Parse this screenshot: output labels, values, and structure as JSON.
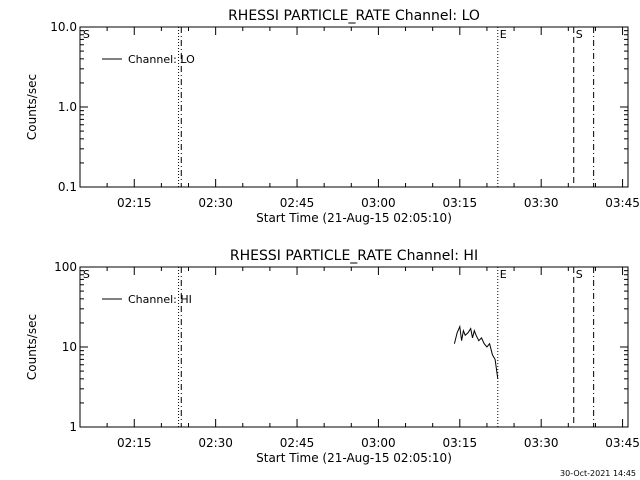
{
  "footer": {
    "timestamp": "30-Oct-2021 14:45"
  },
  "chart_data": [
    {
      "type": "line",
      "title": "RHESSI PARTICLE_RATE Channel: LO",
      "xlabel": "Start Time (21-Aug-15 02:05:10)",
      "ylabel": "Counts/sec",
      "yscale": "log",
      "xlim": [
        "02:05",
        "03:46"
      ],
      "ylim": [
        0.1,
        10.0
      ],
      "ytick_labels": [
        "0.1",
        "1.0",
        "10.0"
      ],
      "xtick_labels": [
        "02:15",
        "02:30",
        "02:45",
        "03:00",
        "03:15",
        "03:30",
        "03:45"
      ],
      "xminor_step_minutes": 5,
      "legend": {
        "label": "Channel: LO",
        "position": "top-left"
      },
      "vlines": [
        {
          "time": "02:23:10",
          "style": "dotted"
        },
        {
          "time": "02:23:40",
          "style": "dashdot"
        },
        {
          "time": "03:22:00",
          "style": "dotted"
        },
        {
          "time": "03:36:00",
          "style": "dashed"
        },
        {
          "time": "03:39:40",
          "style": "dashdot"
        }
      ],
      "markers": [
        {
          "label": "S",
          "time": "02:05:10"
        },
        {
          "label": "E",
          "time": "03:22:00"
        },
        {
          "label": "S",
          "time": "03:36:00"
        }
      ],
      "series": [
        {
          "name": "Channel: LO",
          "x": [],
          "y": []
        }
      ]
    },
    {
      "type": "line",
      "title": "RHESSI PARTICLE_RATE Channel: HI",
      "xlabel": "Start Time (21-Aug-15 02:05:10)",
      "ylabel": "Counts/sec",
      "yscale": "log",
      "xlim": [
        "02:05",
        "03:46"
      ],
      "ylim": [
        1,
        100
      ],
      "ytick_labels": [
        "1",
        "10",
        "100"
      ],
      "xtick_labels": [
        "02:15",
        "02:30",
        "02:45",
        "03:00",
        "03:15",
        "03:30",
        "03:45"
      ],
      "xminor_step_minutes": 5,
      "legend": {
        "label": "Channel: HI",
        "position": "top-left"
      },
      "vlines": [
        {
          "time": "02:23:10",
          "style": "dotted"
        },
        {
          "time": "02:23:40",
          "style": "dashdot"
        },
        {
          "time": "03:22:00",
          "style": "dotted"
        },
        {
          "time": "03:36:00",
          "style": "dashed"
        },
        {
          "time": "03:39:40",
          "style": "dashdot"
        }
      ],
      "markers": [
        {
          "label": "S",
          "time": "02:05:10"
        },
        {
          "label": "E",
          "time": "03:22:00"
        },
        {
          "label": "S",
          "time": "03:36:00"
        }
      ],
      "series": [
        {
          "name": "Channel: HI",
          "x": [
            "03:14:00",
            "03:14:30",
            "03:15:00",
            "03:15:20",
            "03:15:40",
            "03:16:00",
            "03:16:30",
            "03:17:00",
            "03:17:20",
            "03:17:40",
            "03:18:00",
            "03:18:30",
            "03:19:00",
            "03:19:30",
            "03:20:00",
            "03:20:30",
            "03:21:00",
            "03:21:30",
            "03:22:00"
          ],
          "y": [
            11,
            15,
            18,
            12,
            16,
            14,
            15,
            17,
            13,
            16,
            14,
            12,
            13,
            11,
            10,
            11,
            8,
            7,
            4
          ]
        }
      ]
    }
  ]
}
